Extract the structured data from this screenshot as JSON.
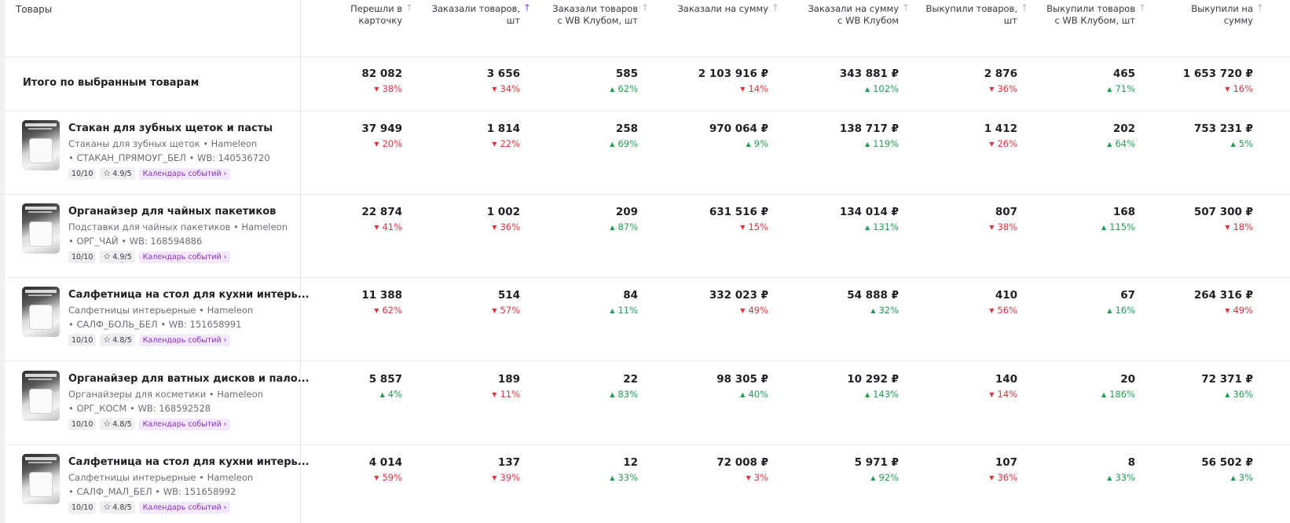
{
  "header": {
    "products_label": "Товары",
    "columns": [
      {
        "line1": "Перешли в",
        "line2": "карточку",
        "sort": "arrow-up-icon",
        "active": false
      },
      {
        "line1": "Заказали товаров,",
        "line2": "шт",
        "sort": "arrow-up-icon",
        "active": true
      },
      {
        "line1": "Заказали товаров",
        "line2": "с WB Клубом, шт",
        "sort": "arrow-up-icon",
        "active": false
      },
      {
        "line1": "Заказали на сумму",
        "line2": "",
        "sort": "arrow-up-icon",
        "active": false
      },
      {
        "line1": "Заказали на сумму",
        "line2": "с WB Клубом",
        "sort": "arrow-up-icon",
        "active": false
      },
      {
        "line1": "Выкупили товаров,",
        "line2": "шт",
        "sort": "arrow-up-icon",
        "active": false
      },
      {
        "line1": "Выкупили товаров",
        "line2": "с WB Клубом, шт",
        "sort": "arrow-up-icon",
        "active": false
      },
      {
        "line1": "Выкупили на",
        "line2": "сумму",
        "sort": "arrow-up-icon",
        "active": false
      }
    ]
  },
  "totals": {
    "label": "Итого по выбранным товарам",
    "cells": [
      {
        "value": "82 082",
        "change": "38%",
        "dir": "down"
      },
      {
        "value": "3 656",
        "change": "34%",
        "dir": "down"
      },
      {
        "value": "585",
        "change": "62%",
        "dir": "up"
      },
      {
        "value": "2 103 916 ₽",
        "change": "14%",
        "dir": "down"
      },
      {
        "value": "343 881 ₽",
        "change": "102%",
        "dir": "up"
      },
      {
        "value": "2 876",
        "change": "36%",
        "dir": "down"
      },
      {
        "value": "465",
        "change": "71%",
        "dir": "up"
      },
      {
        "value": "1 653 720 ₽",
        "change": "16%",
        "dir": "down"
      }
    ]
  },
  "products": [
    {
      "name": "Стакан для зубных щеток и пасты",
      "category": "Стаканы для зубных щеток • Hameleon",
      "meta": "• СТАКАН_ПРЯМОУГ_БЕЛ • WB: 140536720",
      "score": "10/10",
      "rating": "4.9/5",
      "event_tag": "Календарь событий",
      "cells": [
        {
          "value": "37 949",
          "change": "20%",
          "dir": "down"
        },
        {
          "value": "1 814",
          "change": "22%",
          "dir": "down"
        },
        {
          "value": "258",
          "change": "69%",
          "dir": "up"
        },
        {
          "value": "970 064 ₽",
          "change": "9%",
          "dir": "up"
        },
        {
          "value": "138 717 ₽",
          "change": "119%",
          "dir": "up"
        },
        {
          "value": "1 412",
          "change": "26%",
          "dir": "down"
        },
        {
          "value": "202",
          "change": "64%",
          "dir": "up"
        },
        {
          "value": "753 231 ₽",
          "change": "5%",
          "dir": "up"
        }
      ]
    },
    {
      "name": "Органайзер для чайных пакетиков",
      "category": "Подставки для чайных пакетиков • Hameleon",
      "meta": "• ОРГ_ЧАЙ • WB: 168594886",
      "score": "10/10",
      "rating": "4.9/5",
      "event_tag": "Календарь событий",
      "cells": [
        {
          "value": "22 874",
          "change": "41%",
          "dir": "down"
        },
        {
          "value": "1 002",
          "change": "36%",
          "dir": "down"
        },
        {
          "value": "209",
          "change": "87%",
          "dir": "up"
        },
        {
          "value": "631 516 ₽",
          "change": "15%",
          "dir": "down"
        },
        {
          "value": "134 014 ₽",
          "change": "131%",
          "dir": "up"
        },
        {
          "value": "807",
          "change": "38%",
          "dir": "down"
        },
        {
          "value": "168",
          "change": "115%",
          "dir": "up"
        },
        {
          "value": "507 300 ₽",
          "change": "18%",
          "dir": "down"
        }
      ]
    },
    {
      "name": "Салфетница на стол для кухни интерь...",
      "category": "Салфетницы интерьерные • Hameleon",
      "meta": "• САЛФ_БОЛЬ_БЕЛ • WB: 151658991",
      "score": "10/10",
      "rating": "4.8/5",
      "event_tag": "Календарь событий",
      "cells": [
        {
          "value": "11 388",
          "change": "62%",
          "dir": "down"
        },
        {
          "value": "514",
          "change": "57%",
          "dir": "down"
        },
        {
          "value": "84",
          "change": "11%",
          "dir": "up"
        },
        {
          "value": "332 023 ₽",
          "change": "49%",
          "dir": "down"
        },
        {
          "value": "54 888 ₽",
          "change": "32%",
          "dir": "up"
        },
        {
          "value": "410",
          "change": "56%",
          "dir": "down"
        },
        {
          "value": "67",
          "change": "16%",
          "dir": "up"
        },
        {
          "value": "264 316 ₽",
          "change": "49%",
          "dir": "down"
        }
      ]
    },
    {
      "name": "Органайзер для ватных дисков и пало...",
      "category": "Органайзеры для косметики • Hameleon",
      "meta": "• ОРГ_КОСМ • WB: 168592528",
      "score": "10/10",
      "rating": "4.8/5",
      "event_tag": "Календарь событий",
      "cells": [
        {
          "value": "5 857",
          "change": "4%",
          "dir": "up"
        },
        {
          "value": "189",
          "change": "11%",
          "dir": "down"
        },
        {
          "value": "22",
          "change": "83%",
          "dir": "up"
        },
        {
          "value": "98 305 ₽",
          "change": "40%",
          "dir": "up"
        },
        {
          "value": "10 292 ₽",
          "change": "143%",
          "dir": "up"
        },
        {
          "value": "140",
          "change": "14%",
          "dir": "down"
        },
        {
          "value": "20",
          "change": "186%",
          "dir": "up"
        },
        {
          "value": "72 371 ₽",
          "change": "36%",
          "dir": "up"
        }
      ]
    },
    {
      "name": "Салфетница на стол для кухни интерь...",
      "category": "Салфетницы интерьерные • Hameleon",
      "meta": "• САЛФ_МАЛ_БЕЛ • WB: 151658992",
      "score": "10/10",
      "rating": "4.8/5",
      "event_tag": "Календарь событий",
      "cells": [
        {
          "value": "4 014",
          "change": "59%",
          "dir": "down"
        },
        {
          "value": "137",
          "change": "39%",
          "dir": "down"
        },
        {
          "value": "12",
          "change": "33%",
          "dir": "up"
        },
        {
          "value": "72 008 ₽",
          "change": "3%",
          "dir": "down"
        },
        {
          "value": "5 971 ₽",
          "change": "92%",
          "dir": "up"
        },
        {
          "value": "107",
          "change": "36%",
          "dir": "down"
        },
        {
          "value": "8",
          "change": "33%",
          "dir": "up"
        },
        {
          "value": "56 502 ₽",
          "change": "3%",
          "dir": "up"
        }
      ]
    }
  ],
  "colors": {
    "up": "#1f9d55",
    "down": "#e0313f",
    "accent": "#8b3ffc",
    "event_tag": "#8b2fc9"
  }
}
